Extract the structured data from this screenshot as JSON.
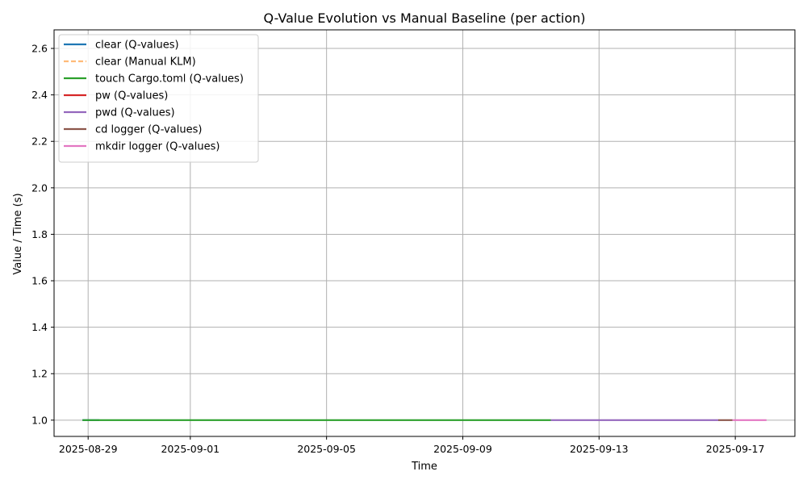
{
  "chart_data": {
    "type": "line",
    "title": "Q-Value Evolution vs Manual Baseline (per action)",
    "xlabel": "Time",
    "ylabel": "Value / Time (s)",
    "xlim": [
      "2025-08-28T00:00",
      "2025-09-18T18:00"
    ],
    "ylim": [
      0.93,
      2.68
    ],
    "x_ticks": [
      "2025-08-29",
      "2025-09-01",
      "2025-09-05",
      "2025-09-09",
      "2025-09-13",
      "2025-09-17"
    ],
    "y_ticks": [
      1.0,
      1.2,
      1.4,
      1.6,
      1.8,
      2.0,
      2.2,
      2.4,
      2.6
    ],
    "grid": true,
    "legend_position": "top-left",
    "series": [
      {
        "name": "clear (Q-values)",
        "color": "#1f77b4",
        "dash": "solid",
        "points": [
          [
            "2025-08-28T20:00",
            1.0
          ],
          [
            "2025-08-29T08:00",
            1.0
          ]
        ]
      },
      {
        "name": "clear (Manual KLM)",
        "color": "#ffbb78",
        "dash": "dashed",
        "points": []
      },
      {
        "name": "touch Cargo.toml (Q-values)",
        "color": "#2ca02c",
        "dash": "solid",
        "points": [
          [
            "2025-08-28T20:00",
            1.0
          ],
          [
            "2025-09-11T14:00",
            1.0
          ]
        ]
      },
      {
        "name": "pw (Q-values)",
        "color": "#d62728",
        "dash": "solid",
        "points": []
      },
      {
        "name": "pwd (Q-values)",
        "color": "#9467bd",
        "dash": "solid",
        "points": [
          [
            "2025-09-11T14:00",
            1.0
          ],
          [
            "2025-09-16T12:00",
            1.0
          ]
        ]
      },
      {
        "name": "cd logger (Q-values)",
        "color": "#8c564b",
        "dash": "solid",
        "points": [
          [
            "2025-09-16T12:00",
            1.0
          ],
          [
            "2025-09-16T22:00",
            1.0
          ]
        ]
      },
      {
        "name": "mkdir logger (Q-values)",
        "color": "#e377c2",
        "dash": "solid",
        "points": [
          [
            "2025-09-16T22:00",
            1.0
          ],
          [
            "2025-09-17T22:00",
            1.0
          ]
        ]
      }
    ]
  }
}
